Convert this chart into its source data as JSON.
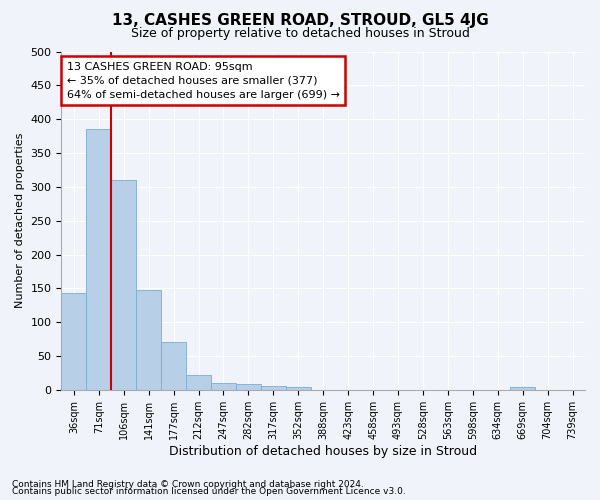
{
  "title": "13, CASHES GREEN ROAD, STROUD, GL5 4JG",
  "subtitle": "Size of property relative to detached houses in Stroud",
  "xlabel": "Distribution of detached houses by size in Stroud",
  "ylabel": "Number of detached properties",
  "footnote1": "Contains HM Land Registry data © Crown copyright and database right 2024.",
  "footnote2": "Contains public sector information licensed under the Open Government Licence v3.0.",
  "annotation_line1": "13 CASHES GREEN ROAD: 95sqm",
  "annotation_line2": "← 35% of detached houses are smaller (377)",
  "annotation_line3": "64% of semi-detached houses are larger (699) →",
  "bin_labels": [
    "36sqm",
    "71sqm",
    "106sqm",
    "141sqm",
    "177sqm",
    "212sqm",
    "247sqm",
    "282sqm",
    "317sqm",
    "352sqm",
    "388sqm",
    "423sqm",
    "458sqm",
    "493sqm",
    "528sqm",
    "563sqm",
    "598sqm",
    "634sqm",
    "669sqm",
    "704sqm",
    "739sqm"
  ],
  "bar_values": [
    143,
    385,
    310,
    147,
    70,
    22,
    10,
    8,
    5,
    4,
    0,
    0,
    0,
    0,
    0,
    0,
    0,
    0,
    4,
    0,
    0
  ],
  "bar_color": "#b8cfe8",
  "bar_edge_color": "#7aadd4",
  "vline_color": "#cc0000",
  "annotation_box_facecolor": "#ffffff",
  "annotation_box_edgecolor": "#cc0000",
  "bg_color": "#f0f4fa",
  "plot_bg_color": "#f0f4fa",
  "grid_color": "#ffffff",
  "ylim": [
    0,
    500
  ],
  "yticks": [
    0,
    50,
    100,
    150,
    200,
    250,
    300,
    350,
    400,
    450,
    500
  ],
  "title_fontsize": 11,
  "subtitle_fontsize": 9,
  "ylabel_fontsize": 8,
  "xlabel_fontsize": 9,
  "tick_fontsize": 8,
  "xtick_fontsize": 7,
  "annot_fontsize": 8,
  "footnote_fontsize": 6.5
}
